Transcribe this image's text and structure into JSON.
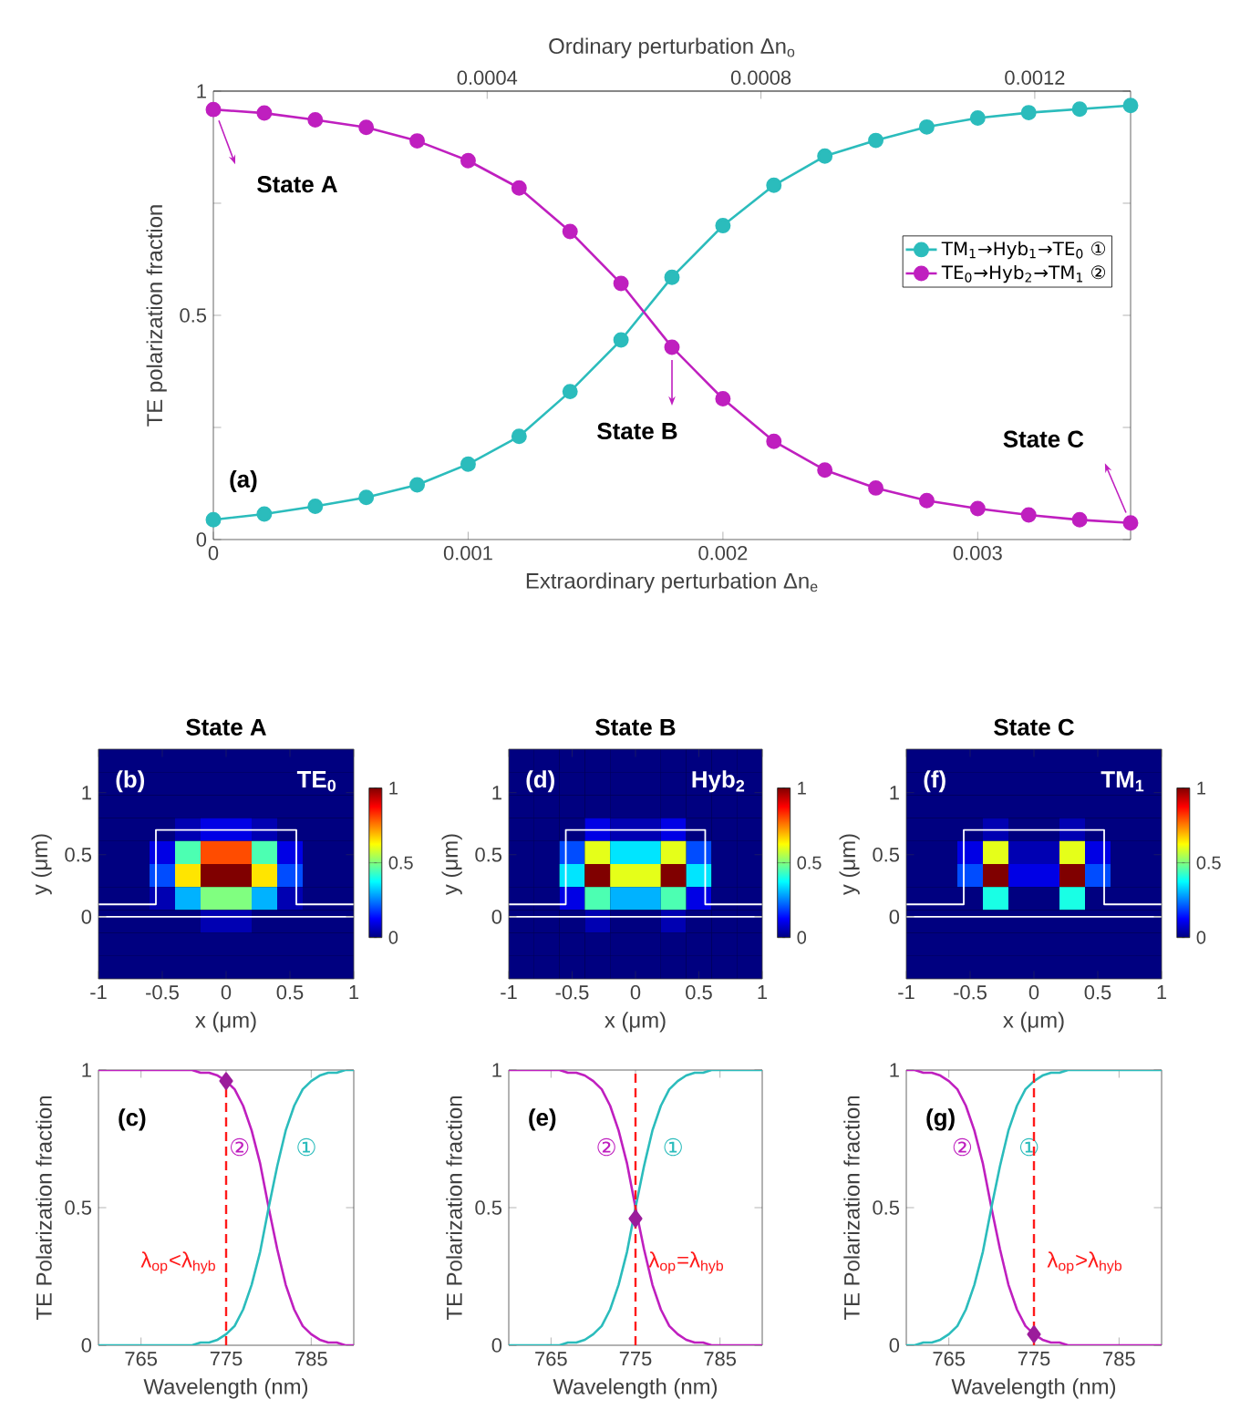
{
  "chart_data": [
    {
      "type": "line",
      "xlabel": "Extraordinary perturbation Δn$_{e}$",
      "x2label": "Ordinary perturbation Δn$_{o}$",
      "ylabel": "TE polarization fraction",
      "x": [
        0,
        0.0002,
        0.0004,
        0.0006,
        0.0008,
        0.001,
        0.0012,
        0.0014,
        0.0016,
        0.0018,
        0.002,
        0.0022,
        0.0024,
        0.0026,
        0.0028,
        0.003,
        0.0032,
        0.0034,
        0.0036
      ],
      "xlim": [
        0,
        0.0036
      ],
      "xticks": [
        0,
        0.001,
        0.002,
        0.003
      ],
      "x2lim": [
        0,
        0.00134
      ],
      "x2ticks": [
        0.0004,
        0.0008,
        0.0012
      ],
      "ylim": [
        0,
        1
      ],
      "yticks": [
        0,
        {
          "value": 0.25,
          "label": null
        },
        0.5,
        {
          "value": 0.75,
          "label": null
        },
        1
      ],
      "marker": "circle",
      "legend": "right",
      "series": [
        {
          "name": "TM$_{1}$→Hyb$_{1}$→TE$_{0}$ ①",
          "color": "#2bbcbc",
          "values": [
            0.044,
            0.057,
            0.074,
            0.094,
            0.122,
            0.168,
            0.23,
            0.33,
            0.445,
            0.585,
            0.7,
            0.79,
            0.855,
            0.89,
            0.92,
            0.94,
            0.952,
            0.96,
            0.968
          ]
        },
        {
          "name": "TE$_{0}$→Hyb$_{2}$→TM$_{1}$ ②",
          "color": "#bf1fbf",
          "values": [
            0.959,
            0.951,
            0.936,
            0.919,
            0.889,
            0.845,
            0.784,
            0.687,
            0.571,
            0.429,
            0.314,
            0.219,
            0.155,
            0.115,
            0.087,
            0.069,
            0.055,
            0.044,
            0.037
          ]
        }
      ],
      "annotations": [
        "(a)",
        {
          "text": "State A",
          "x": 0,
          "y": 0.959
        },
        {
          "text": "State B",
          "x": 0.0018,
          "y": 0.429
        },
        "State C"
      ]
    },
    {
      "type": "heatmap",
      "title": "State A",
      "xlabel": "x (μm)",
      "ylabel": "y (μm)",
      "annotations": [
        "(b)",
        "TE$_{0}$"
      ],
      "series": [
        {
          "type": "line",
          "color": "#ffffff",
          "x": [
            -1,
            -0.55,
            -0.55,
            0.55,
            0.55,
            1
          ],
          "values": [
            0.1,
            0.1,
            0.7,
            0.7,
            0.1,
            0.1
          ]
        }
      ],
      "x": [
        -0.9,
        -0.7,
        -0.5,
        -0.3,
        -0.1,
        0.1,
        0.3,
        0.5,
        0.7,
        0.9
      ],
      "y": [
        1.2575,
        1.0725,
        0.8875,
        0.7025,
        0.5175,
        0.3325,
        0.1475,
        -0.0375,
        -0.2225,
        -0.4075
      ],
      "xlim": [
        -1,
        1
      ],
      "xticks": [
        -1,
        -0.5,
        0,
        0.5,
        1
      ],
      "ylim": [
        -0.5,
        1.35
      ],
      "yticks": [
        0,
        0.5,
        1
      ],
      "clim": [
        0,
        1
      ],
      "cticks": [
        0,
        0.5,
        1
      ],
      "ref_lines": [
        {
          "axis": "y",
          "value": 0,
          "color": "#ffffff"
        }
      ],
      "cells": [
        [
          0,
          0,
          0,
          0,
          0,
          0,
          0,
          0,
          0,
          0
        ],
        [
          0,
          0,
          0,
          0,
          0,
          0,
          0,
          0,
          0,
          0
        ],
        [
          0,
          0,
          0,
          0,
          0,
          0,
          0,
          0,
          0,
          0
        ],
        [
          0,
          0,
          0,
          0.05,
          0.1,
          0.1,
          0.05,
          0,
          0,
          0
        ],
        [
          0,
          0,
          0.1,
          0.45,
          0.8,
          0.8,
          0.45,
          0.1,
          0,
          0
        ],
        [
          0,
          0,
          0.2,
          0.65,
          1,
          1,
          0.65,
          0.2,
          0,
          0
        ],
        [
          0,
          0,
          0.05,
          0.3,
          0.5,
          0.5,
          0.3,
          0.05,
          0,
          0
        ],
        [
          0,
          0,
          0,
          0,
          0.05,
          0.05,
          0,
          0,
          0,
          0
        ],
        [
          0,
          0,
          0,
          0,
          0,
          0,
          0,
          0,
          0,
          0
        ],
        [
          0,
          0,
          0,
          0,
          0,
          0,
          0,
          0,
          0,
          0
        ]
      ]
    },
    {
      "type": "heatmap",
      "title": "State B",
      "xlabel": "x (μm)",
      "ylabel": "y (μm)",
      "annotations": [
        "(d)",
        "Hyb$_{2}$"
      ],
      "series": [
        {
          "type": "line",
          "color": "#ffffff",
          "x": [
            -1,
            -0.55,
            -0.55,
            0.55,
            0.55,
            1
          ],
          "values": [
            0.1,
            0.1,
            0.7,
            0.7,
            0.1,
            0.1
          ]
        }
      ],
      "x": [
        -0.9,
        -0.7,
        -0.5,
        -0.3,
        -0.1,
        0.1,
        0.3,
        0.5,
        0.7,
        0.9
      ],
      "y": [
        1.2575,
        1.0725,
        0.8875,
        0.7025,
        0.5175,
        0.3325,
        0.1475,
        -0.0375,
        -0.2225,
        -0.4075
      ],
      "xlim": [
        -1,
        1
      ],
      "xticks": [
        -1,
        -0.5,
        0,
        0.5,
        1
      ],
      "ylim": [
        -0.5,
        1.35
      ],
      "yticks": [
        0,
        0.5,
        1
      ],
      "clim": [
        0,
        1
      ],
      "cticks": [
        0,
        0.5,
        1
      ],
      "ref_lines": [
        {
          "axis": "y",
          "value": 0,
          "color": "#ffffff"
        }
      ],
      "cells": [
        [
          0,
          0,
          0,
          0,
          0,
          0,
          0,
          0,
          0,
          0
        ],
        [
          0,
          0,
          0,
          0,
          0,
          0,
          0,
          0,
          0,
          0
        ],
        [
          0,
          0,
          0,
          0,
          0,
          0,
          0,
          0,
          0,
          0
        ],
        [
          0,
          0,
          0,
          0.1,
          0.05,
          0.05,
          0.1,
          0,
          0,
          0
        ],
        [
          0,
          0,
          0.2,
          0.6,
          0.35,
          0.35,
          0.6,
          0.2,
          0,
          0
        ],
        [
          0,
          0,
          0.35,
          1,
          0.6,
          0.6,
          1,
          0.35,
          0,
          0
        ],
        [
          0,
          0,
          0.1,
          0.45,
          0.3,
          0.3,
          0.45,
          0.1,
          0,
          0
        ],
        [
          0,
          0,
          0,
          0.05,
          0,
          0,
          0.05,
          0,
          0,
          0
        ],
        [
          0,
          0,
          0,
          0,
          0,
          0,
          0,
          0,
          0,
          0
        ],
        [
          0,
          0,
          0,
          0,
          0,
          0,
          0,
          0,
          0,
          0
        ]
      ]
    },
    {
      "type": "heatmap",
      "title": "State C",
      "xlabel": "x (μm)",
      "ylabel": "y (μm)",
      "annotations": [
        "(f)",
        "TM$_{1}$"
      ],
      "series": [
        {
          "type": "line",
          "color": "#ffffff",
          "x": [
            -1,
            -0.55,
            -0.55,
            0.55,
            0.55,
            1
          ],
          "values": [
            0.1,
            0.1,
            0.7,
            0.7,
            0.1,
            0.1
          ]
        }
      ],
      "x": [
        -0.9,
        -0.7,
        -0.5,
        -0.3,
        -0.1,
        0.1,
        0.3,
        0.5,
        0.7,
        0.9
      ],
      "y": [
        1.2575,
        1.0725,
        0.8875,
        0.7025,
        0.5175,
        0.3325,
        0.1475,
        -0.0375,
        -0.2225,
        -0.4075
      ],
      "xlim": [
        -1,
        1
      ],
      "xticks": [
        -1,
        -0.5,
        0,
        0.5,
        1
      ],
      "ylim": [
        -0.5,
        1.35
      ],
      "yticks": [
        0,
        0.5,
        1
      ],
      "clim": [
        0,
        1
      ],
      "cticks": [
        0,
        0.5,
        1
      ],
      "ref_lines": [
        {
          "axis": "y",
          "value": 0,
          "color": "#ffffff"
        }
      ],
      "cells": [
        [
          0,
          0,
          0,
          0,
          0,
          0,
          0,
          0,
          0,
          0
        ],
        [
          0,
          0,
          0,
          0,
          0,
          0,
          0,
          0,
          0,
          0
        ],
        [
          0,
          0,
          0,
          0,
          0,
          0,
          0,
          0,
          0,
          0
        ],
        [
          0,
          0,
          0,
          0.05,
          0,
          0,
          0.05,
          0,
          0,
          0
        ],
        [
          0,
          0,
          0.1,
          0.6,
          0.05,
          0.05,
          0.6,
          0.1,
          0,
          0
        ],
        [
          0,
          0,
          0.2,
          1,
          0.1,
          0.1,
          1,
          0.2,
          0,
          0
        ],
        [
          0,
          0,
          0,
          0.4,
          0,
          0,
          0.4,
          0,
          0,
          0
        ],
        [
          0,
          0,
          0,
          0,
          0,
          0,
          0,
          0,
          0,
          0
        ],
        [
          0,
          0,
          0,
          0,
          0,
          0,
          0,
          0,
          0,
          0
        ],
        [
          0,
          0,
          0,
          0,
          0,
          0,
          0,
          0,
          0,
          0
        ]
      ]
    },
    {
      "type": "line",
      "xlabel": "Wavelength (nm)",
      "ylabel": "TE Polarization fraction",
      "xlim": [
        760,
        790
      ],
      "xticks": [
        765,
        775,
        785
      ],
      "ylim": [
        0,
        1
      ],
      "yticks": [
        0,
        0.5,
        1
      ],
      "series": [
        {
          "name": "②",
          "color": "#bf1fbf",
          "x": [
            760,
            770,
            771,
            772,
            773,
            774,
            775,
            776,
            777,
            778,
            779,
            780,
            781,
            782,
            783,
            784,
            785,
            786,
            787,
            788,
            789,
            790
          ],
          "values": [
            1,
            1,
            1,
            0.99,
            0.99,
            0.98,
            0.96,
            0.93,
            0.87,
            0.78,
            0.66,
            0.5,
            0.35,
            0.22,
            0.13,
            0.07,
            0.04,
            0.02,
            0.01,
            0.01,
            0,
            0
          ]
        },
        {
          "name": "①",
          "color": "#2bbcbc",
          "x": [
            760,
            770,
            771,
            772,
            773,
            774,
            775,
            776,
            777,
            778,
            779,
            780,
            781,
            782,
            783,
            784,
            785,
            786,
            787,
            788,
            789,
            790
          ],
          "values": [
            0,
            0,
            0,
            0.01,
            0.01,
            0.02,
            0.04,
            0.07,
            0.13,
            0.22,
            0.34,
            0.5,
            0.65,
            0.78,
            0.87,
            0.93,
            0.96,
            0.98,
            0.99,
            0.99,
            1,
            1
          ]
        },
        {
          "type": "scatter",
          "marker": "diamond",
          "color": "#9b1c9b",
          "x": [
            775
          ],
          "values": [
            0.96
          ]
        }
      ],
      "ref_lines": [
        {
          "axis": "x",
          "value": 775,
          "label": "λ$_{op}$<λ$_{hyb}$",
          "color": "#ff1a1a",
          "line_style": "dashed"
        }
      ],
      "annotations": [
        "(c)"
      ]
    },
    {
      "type": "line",
      "xlabel": "Wavelength (nm)",
      "ylabel": "TE Polarization fraction",
      "xlim": [
        760,
        790
      ],
      "xticks": [
        765,
        775,
        785
      ],
      "ylim": [
        0,
        1
      ],
      "yticks": [
        0,
        0.5,
        1
      ],
      "series": [
        {
          "name": "②",
          "color": "#bf1fbf",
          "x": [
            760,
            765,
            766,
            767,
            768,
            769,
            770,
            771,
            772,
            773,
            774,
            775,
            776,
            777,
            778,
            779,
            780,
            781,
            782,
            783,
            784,
            785,
            790
          ],
          "values": [
            1,
            1,
            1,
            0.99,
            0.99,
            0.98,
            0.96,
            0.93,
            0.87,
            0.78,
            0.66,
            0.5,
            0.35,
            0.22,
            0.13,
            0.07,
            0.04,
            0.02,
            0.01,
            0.01,
            0,
            0,
            0
          ]
        },
        {
          "name": "①",
          "color": "#2bbcbc",
          "x": [
            760,
            765,
            766,
            767,
            768,
            769,
            770,
            771,
            772,
            773,
            774,
            775,
            776,
            777,
            778,
            779,
            780,
            781,
            782,
            783,
            784,
            785,
            790
          ],
          "values": [
            0,
            0,
            0,
            0.01,
            0.01,
            0.02,
            0.04,
            0.07,
            0.13,
            0.22,
            0.34,
            0.5,
            0.65,
            0.78,
            0.87,
            0.93,
            0.96,
            0.98,
            0.99,
            0.99,
            1,
            1,
            1
          ]
        },
        {
          "type": "scatter",
          "marker": "diamond",
          "color": "#9b1c9b",
          "x": [
            775
          ],
          "values": [
            0.46
          ]
        }
      ],
      "ref_lines": [
        {
          "axis": "x",
          "value": 775,
          "label": "λ$_{op}$=λ$_{hyb}$",
          "color": "#ff1a1a",
          "line_style": "dashed"
        }
      ],
      "annotations": [
        "(e)"
      ]
    },
    {
      "type": "line",
      "xlabel": "Wavelength (nm)",
      "ylabel": "TE Polarization fraction",
      "xlim": [
        760,
        790
      ],
      "xticks": [
        765,
        775,
        785
      ],
      "ylim": [
        0,
        1
      ],
      "yticks": [
        0,
        0.5,
        1
      ],
      "series": [
        {
          "name": "②",
          "color": "#bf1fbf",
          "x": [
            760,
            761,
            762,
            763,
            764,
            765,
            766,
            767,
            768,
            769,
            770,
            771,
            772,
            773,
            774,
            775,
            776,
            777,
            778,
            779,
            780,
            790
          ],
          "values": [
            1,
            1,
            0.99,
            0.99,
            0.98,
            0.96,
            0.93,
            0.87,
            0.78,
            0.66,
            0.5,
            0.35,
            0.22,
            0.13,
            0.07,
            0.04,
            0.02,
            0.01,
            0.01,
            0,
            0,
            0
          ]
        },
        {
          "name": "①",
          "color": "#2bbcbc",
          "x": [
            760,
            761,
            762,
            763,
            764,
            765,
            766,
            767,
            768,
            769,
            770,
            771,
            772,
            773,
            774,
            775,
            776,
            777,
            778,
            779,
            780,
            790
          ],
          "values": [
            0,
            0,
            0.01,
            0.01,
            0.02,
            0.04,
            0.07,
            0.13,
            0.22,
            0.34,
            0.5,
            0.65,
            0.78,
            0.87,
            0.93,
            0.96,
            0.98,
            0.99,
            0.99,
            1,
            1,
            1
          ]
        },
        {
          "type": "scatter",
          "marker": "diamond",
          "color": "#9b1c9b",
          "x": [
            775
          ],
          "values": [
            0.04
          ]
        }
      ],
      "ref_lines": [
        {
          "axis": "x",
          "value": 775,
          "label": "λ$_{op}$>λ$_{hyb}$",
          "color": "#ff1a1a",
          "line_style": "dashed"
        }
      ],
      "annotations": [
        "(g)"
      ]
    }
  ]
}
